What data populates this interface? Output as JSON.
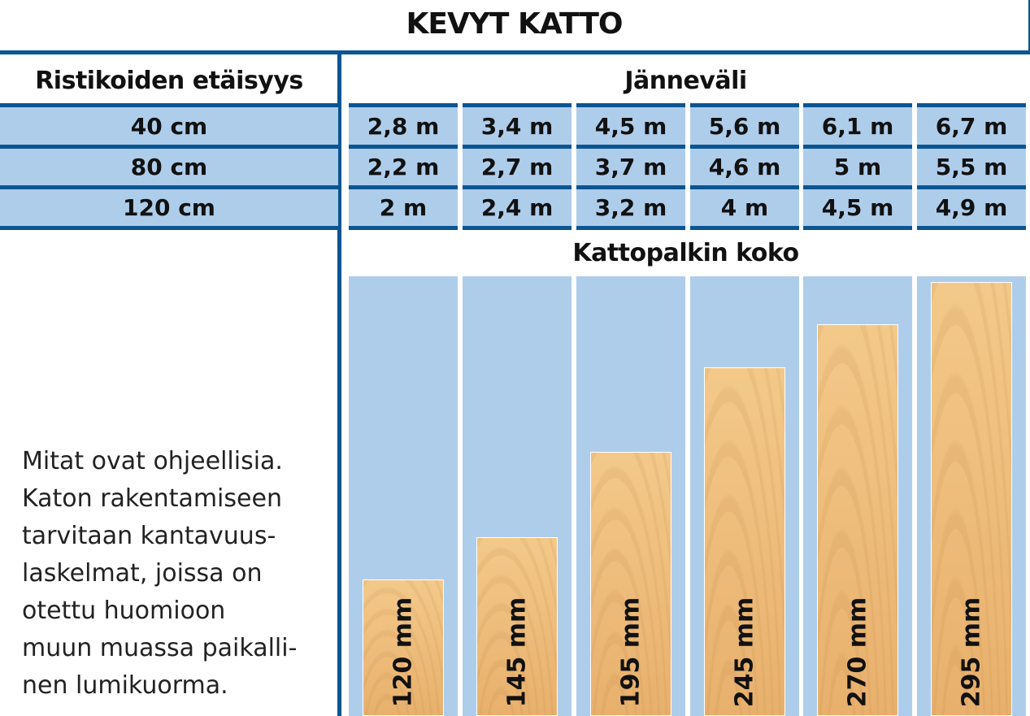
{
  "title": "KEVYT KATTO",
  "headers": {
    "spacing": "Ristikoiden etäisyys",
    "span": "Jänneväli",
    "beam_size": "Kattopalkin koko"
  },
  "rows": [
    {
      "spacing": "40 cm",
      "spans": [
        "2,8 m",
        "3,4 m",
        "4,5 m",
        "5,6 m",
        "6,1 m",
        "6,7 m"
      ]
    },
    {
      "spacing": "80 cm",
      "spans": [
        "2,2 m",
        "2,7 m",
        "3,7 m",
        "4,6 m",
        "5 m",
        "5,5 m"
      ]
    },
    {
      "spacing": "120 cm",
      "spans": [
        "2 m",
        "2,4 m",
        "3,2 m",
        "4 m",
        "4,5 m",
        "4,9 m"
      ]
    }
  ],
  "note": "Mitat ovat ohjeellisia.\nKaton rakentamiseen\ntarvitaan kantavuus-\nlaskelmat, joissa on\notettu huomioon\nmuun muassa paikalli-\nnen lumikuorma.",
  "colors": {
    "accent": "#0b5592",
    "cell": "#aecdeb",
    "wood": "#eebd7c"
  },
  "chart_data": {
    "type": "bar",
    "title": "Kattopalkin koko",
    "xlabel": "",
    "ylabel": "",
    "categories": [
      "120 mm",
      "145 mm",
      "195 mm",
      "245 mm",
      "270 mm",
      "295 mm"
    ],
    "values": [
      120,
      145,
      195,
      245,
      270,
      295
    ],
    "ylim": [
      0,
      300
    ],
    "grid": false
  }
}
